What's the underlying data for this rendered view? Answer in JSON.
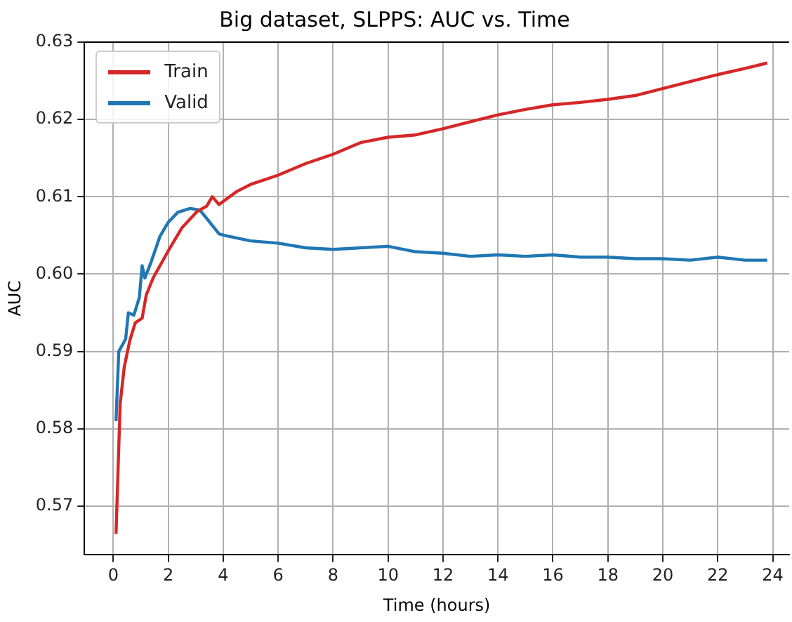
{
  "chart_data": {
    "type": "line",
    "title": "Big dataset, SLPPS: AUC vs. Time",
    "xlabel": "Time (hours)",
    "ylabel": "AUC",
    "xlim": [
      -1.05,
      24.6
    ],
    "xticks": [
      0,
      2,
      4,
      6,
      8,
      10,
      12,
      14,
      16,
      18,
      20,
      22,
      24
    ],
    "ylim": [
      0.5637,
      0.63
    ],
    "yticks": [
      0.57,
      0.58,
      0.59,
      {
        "value": 0.6,
        "label": "0.60"
      },
      0.61,
      0.62,
      0.63
    ],
    "grid": true,
    "legend": "top left",
    "marker": "none",
    "line_style": "solid",
    "series": [
      {
        "name": "Train",
        "color": "#d62728",
        "x": [
          0.1,
          0.25,
          0.4,
          0.6,
          0.8,
          1.05,
          1.2,
          1.45,
          2,
          2.5,
          3.05,
          3.4,
          3.6,
          3.85,
          4.5,
          5,
          6,
          7,
          8,
          9,
          10,
          11,
          12,
          13,
          14,
          15,
          16,
          17,
          18,
          19,
          20,
          21,
          22,
          23,
          23.8
        ],
        "values": [
          0.5664,
          0.5832,
          0.588,
          0.5914,
          0.5937,
          0.5943,
          0.5973,
          0.5995,
          0.603,
          0.606,
          0.6081,
          0.6088,
          0.61,
          0.609,
          0.6107,
          0.6116,
          0.6128,
          0.6143,
          0.6155,
          0.617,
          0.6177,
          0.618,
          0.6188,
          0.6197,
          0.6206,
          0.6213,
          0.6219,
          0.6222,
          0.6226,
          0.6231,
          0.624,
          0.6249,
          0.6258,
          0.6266,
          0.6273
        ]
      },
      {
        "name": "Valid",
        "color": "#1f77b4",
        "x": [
          0.1,
          0.2,
          0.45,
          0.55,
          0.75,
          0.95,
          1.05,
          1.15,
          1.35,
          1.7,
          2,
          2.35,
          2.8,
          3.15,
          3.4,
          3.85,
          4.05,
          5,
          6,
          7,
          8,
          9,
          10,
          11,
          12,
          13,
          14,
          15,
          16,
          17,
          18,
          19,
          20,
          21,
          22,
          23,
          23.8
        ],
        "values": [
          0.581,
          0.59,
          0.5916,
          0.595,
          0.5947,
          0.597,
          0.6011,
          0.5995,
          0.6013,
          0.6049,
          0.6067,
          0.608,
          0.6085,
          0.6083,
          0.6072,
          0.6052,
          0.605,
          0.6043,
          0.604,
          0.6034,
          0.6032,
          0.6034,
          0.6036,
          0.6029,
          0.6027,
          0.6023,
          0.6025,
          0.6023,
          0.6025,
          0.6022,
          0.6022,
          0.602,
          0.602,
          0.6018,
          0.6022,
          0.6018,
          0.6018
        ]
      }
    ]
  }
}
